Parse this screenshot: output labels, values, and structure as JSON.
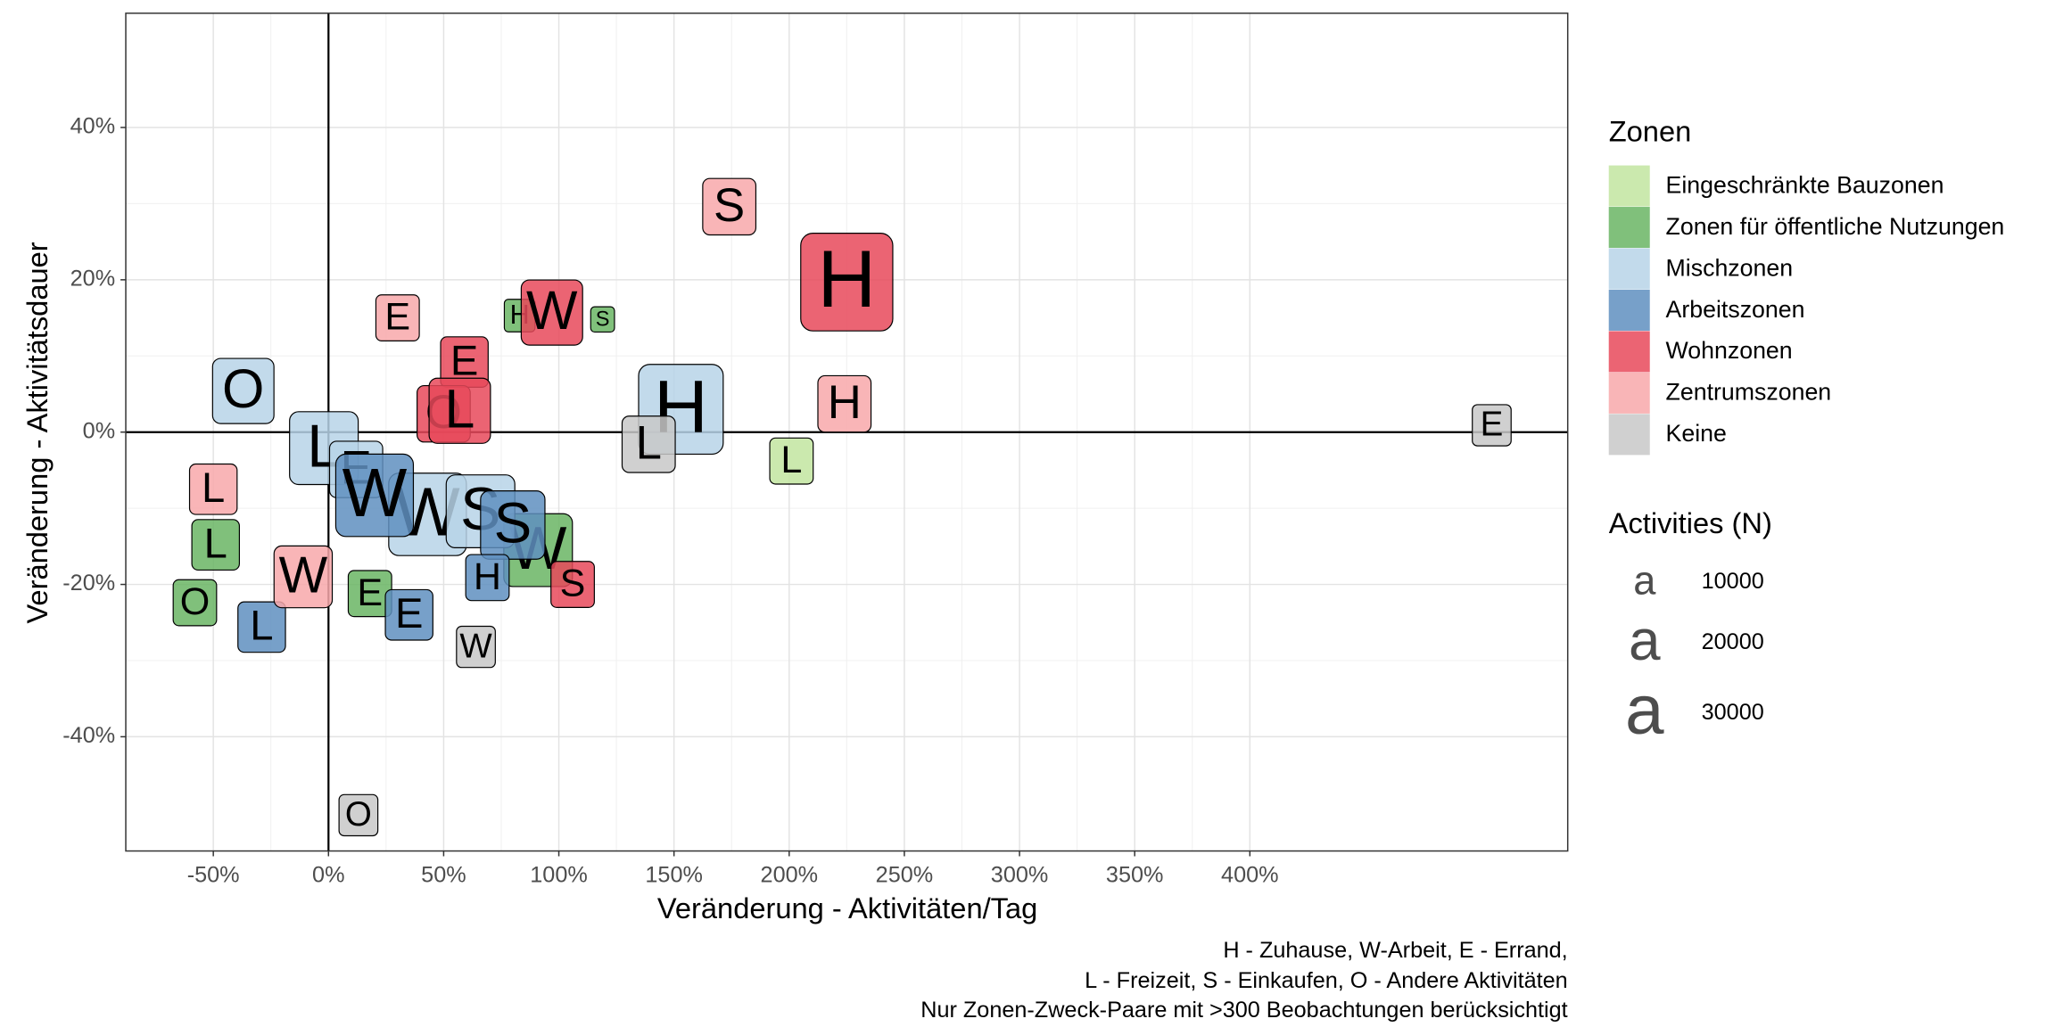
{
  "chart_data": {
    "type": "scatter",
    "x_label": "Veränderung - Aktivitäten/Tag",
    "y_label": "Veränderung - Aktivitätsdauer",
    "caption": [
      "H - Zuhause, W-Arbeit, E - Errand,",
      "L - Freizeit, S - Einkaufen, O - Andere Aktivitäten",
      "Nur Zonen-Zweck-Paare mit >300 Beobachtungen berücksichtigt"
    ],
    "xlim": [
      -88,
      538
    ],
    "ylim": [
      -55,
      55
    ],
    "xticks": [
      {
        "value": -50,
        "label": "-50%"
      },
      {
        "value": 0,
        "label": "0%"
      },
      {
        "value": 50,
        "label": "50%"
      },
      {
        "value": 100,
        "label": "100%"
      },
      {
        "value": 150,
        "label": "150%"
      },
      {
        "value": 200,
        "label": "200%"
      },
      {
        "value": 250,
        "label": "250%"
      },
      {
        "value": 300,
        "label": "300%"
      },
      {
        "value": 350,
        "label": "350%"
      },
      {
        "value": 400,
        "label": "400%"
      }
    ],
    "yticks": [
      {
        "value": -40,
        "label": "-40%"
      },
      {
        "value": -20,
        "label": "-20%"
      },
      {
        "value": 0,
        "label": "0%"
      },
      {
        "value": 20,
        "label": "20%"
      },
      {
        "value": 40,
        "label": "40%"
      }
    ],
    "grid": true,
    "hline": 0,
    "vline": 0,
    "legend_title": "Zonen",
    "size_legend": {
      "title": "Activities (N)",
      "glyph": "a",
      "values": [
        10000,
        20000,
        30000
      ]
    },
    "series": [
      {
        "name": "Eingeschränkte Bauzonen",
        "color": "#c2e5a0",
        "x": [
          201
        ],
        "values": [
          -3.8
        ],
        "labels": [
          "L"
        ],
        "sizes": [
          10000
        ]
      },
      {
        "name": "Zonen für öffentliche Nutzungen",
        "color": "#6ab564",
        "x": [
          83,
          119,
          91,
          -49,
          -58,
          18
        ],
        "values": [
          15.3,
          14.8,
          -15.5,
          -14.8,
          -22.4,
          -21.2
        ],
        "labels": [
          "H",
          "S",
          "W",
          "L",
          "O",
          "E"
        ],
        "sizes": [
          5000,
          3000,
          25000,
          12000,
          10000,
          10000
        ]
      },
      {
        "name": "Mischzonen",
        "color": "#b7d3e8",
        "x": [
          -37,
          153,
          -2,
          12,
          43,
          66
        ],
        "values": [
          5.4,
          3,
          -2.1,
          -4.9,
          -10.8,
          -10.4
        ],
        "labels": [
          "O",
          "H",
          "L",
          "E",
          "W",
          "S"
        ],
        "sizes": [
          20000,
          38000,
          25000,
          15000,
          32000,
          25000
        ]
      },
      {
        "name": "Arbeitszonen",
        "color": "#5f8fc0",
        "x": [
          20,
          80,
          -29,
          35,
          69
        ],
        "values": [
          -8.3,
          -12.2,
          -25.6,
          -24,
          -19.1
        ],
        "labels": [
          "W",
          "S",
          "L",
          "E",
          "H"
        ],
        "sizes": [
          32000,
          22000,
          12000,
          12000,
          10000
        ]
      },
      {
        "name": "Wohnzonen",
        "color": "#e8495b",
        "x": [
          225,
          97,
          59,
          50,
          57,
          106
        ],
        "values": [
          19.7,
          15.7,
          9.2,
          2.4,
          2.8,
          -20
        ],
        "labels": [
          "H",
          "W",
          "E",
          "O",
          "L",
          "S"
        ],
        "sizes": [
          45000,
          20000,
          12000,
          15000,
          20000,
          10000
        ]
      },
      {
        "name": "Zentrumszonen",
        "color": "#f8a8aa",
        "x": [
          174,
          30,
          224,
          -50,
          -11
        ],
        "values": [
          29.6,
          15,
          3.7,
          -7.5,
          -19
        ],
        "labels": [
          "S",
          "E",
          "H",
          "L",
          "W"
        ],
        "sizes": [
          15000,
          10000,
          15000,
          12000,
          18000
        ]
      },
      {
        "name": "Keine",
        "color": "#c8c8c8",
        "x": [
          505,
          139,
          64,
          13
        ],
        "values": [
          0.9,
          -1.6,
          -28.2,
          -50.3
        ],
        "labels": [
          "E",
          "L",
          "W",
          "O"
        ],
        "sizes": [
          8000,
          15000,
          8000,
          8000
        ]
      }
    ]
  }
}
